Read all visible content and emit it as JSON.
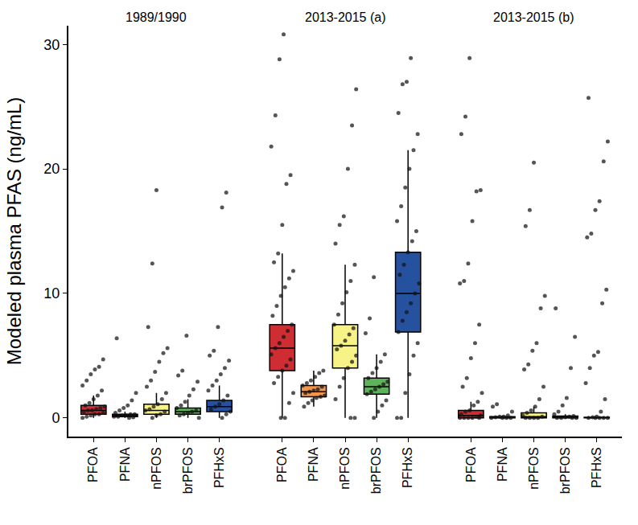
{
  "chart_data": {
    "type": "box",
    "ylabel": "Modeled plasma PFAS (ng/mL)",
    "ylim": [
      -1.5,
      31.5
    ],
    "yticks": [
      0,
      10,
      20,
      30
    ],
    "grid": false,
    "marker": "circle",
    "groups": [
      {
        "name": "1989/1990",
        "boxes": [
          {
            "category": "PFOA",
            "color": "#c8161d",
            "q1": 0.3,
            "median": 0.6,
            "q3": 1.0,
            "lowerfence": 0,
            "upperfence": 1.8,
            "points": [
              0,
              0.1,
              0.2,
              0.3,
              0.3,
              0.4,
              0.5,
              0.6,
              0.6,
              0.7,
              0.8,
              0.9,
              1.0,
              1.2,
              1.5,
              1.8,
              2.2,
              2.6,
              3.0,
              3.5,
              3.9,
              4.1,
              4.7
            ]
          },
          {
            "category": "PFNA",
            "color": "#f08a3c",
            "q1": 0.1,
            "median": 0.2,
            "q3": 0.3,
            "lowerfence": 0,
            "upperfence": 0.5,
            "points": [
              0,
              0.05,
              0.1,
              0.1,
              0.2,
              0.2,
              0.3,
              0.3,
              0.4,
              0.6,
              0.8,
              1.0,
              1.4,
              2.0,
              6.4
            ]
          },
          {
            "category": "nPFOS",
            "color": "#f7f27a",
            "q1": 0.3,
            "median": 0.6,
            "q3": 1.1,
            "lowerfence": 0,
            "upperfence": 2.0,
            "points": [
              0,
              0.2,
              0.3,
              0.5,
              0.6,
              0.7,
              0.9,
              1.1,
              1.5,
              2.0,
              2.5,
              3.0,
              3.7,
              4.5,
              5.2,
              5.6,
              7.3,
              12.4,
              18.3
            ]
          },
          {
            "category": "brPFOS",
            "color": "#4fa84a",
            "q1": 0.3,
            "median": 0.5,
            "q3": 0.8,
            "lowerfence": 0,
            "upperfence": 1.5,
            "points": [
              0,
              0.2,
              0.3,
              0.4,
              0.5,
              0.6,
              0.8,
              1.0,
              1.3,
              1.8,
              2.3,
              2.9,
              3.4,
              3.8,
              6.6
            ]
          },
          {
            "category": "PFHxS",
            "color": "#0d3e94",
            "q1": 0.5,
            "median": 0.9,
            "q3": 1.4,
            "lowerfence": 0,
            "upperfence": 2.6,
            "points": [
              0,
              0.3,
              0.5,
              0.7,
              0.9,
              1.1,
              1.4,
              1.8,
              2.2,
              2.6,
              3.0,
              3.5,
              4.0,
              4.6,
              5.0,
              5.4,
              7.3,
              16.9,
              18.1
            ]
          }
        ]
      },
      {
        "name": "2013-2015 (a)",
        "boxes": [
          {
            "category": "PFOA",
            "color": "#c8161d",
            "q1": 3.8,
            "median": 5.6,
            "q3": 7.5,
            "lowerfence": 0,
            "upperfence": 13.2,
            "points": [
              0,
              0,
              1.2,
              2.0,
              2.8,
              3.3,
              3.8,
              4.2,
              4.7,
              5.1,
              5.6,
              6.0,
              6.5,
              7.0,
              7.5,
              8.2,
              9.0,
              9.8,
              10.5,
              11.2,
              11.8,
              12.5,
              13.2,
              15.5,
              18.8,
              19.5,
              21.8,
              24.3,
              28.8,
              30.8
            ]
          },
          {
            "category": "PFNA",
            "color": "#f08a3c",
            "q1": 1.7,
            "median": 2.1,
            "q3": 2.6,
            "lowerfence": 0.9,
            "upperfence": 3.8,
            "points": [
              0.9,
              1.2,
              1.4,
              1.6,
              1.7,
              1.8,
              2.0,
              2.1,
              2.2,
              2.3,
              2.5,
              2.6,
              2.8,
              3.0,
              3.3,
              3.6,
              3.8
            ]
          },
          {
            "category": "nPFOS",
            "color": "#f7f27a",
            "q1": 4.0,
            "median": 5.8,
            "q3": 7.5,
            "lowerfence": 0,
            "upperfence": 12.3,
            "points": [
              0,
              0,
              1.5,
              2.5,
              3.2,
              4.0,
              4.5,
              5.0,
              5.5,
              5.8,
              6.2,
              6.7,
              7.2,
              7.5,
              8.3,
              9.2,
              10.1,
              11.0,
              12.3,
              14.0,
              15.5,
              16.2,
              20.0,
              23.5,
              26.4
            ]
          },
          {
            "category": "brPFOS",
            "color": "#4fa84a",
            "q1": 1.9,
            "median": 2.5,
            "q3": 3.2,
            "lowerfence": 0,
            "upperfence": 5.1,
            "points": [
              0,
              0.5,
              1.0,
              1.4,
              1.9,
              2.1,
              2.3,
              2.5,
              2.7,
              2.9,
              3.2,
              3.6,
              4.0,
              4.5,
              5.1,
              6.8,
              8.0,
              11.3
            ]
          },
          {
            "category": "PFHxS",
            "color": "#0d3e94",
            "q1": 6.9,
            "median": 10.0,
            "q3": 13.3,
            "lowerfence": 0,
            "upperfence": 21.5,
            "points": [
              0,
              0,
              2.0,
              3.5,
              5.0,
              6.0,
              6.9,
              7.8,
              8.5,
              9.2,
              10.0,
              10.8,
              11.5,
              12.3,
              13.3,
              14.2,
              15.0,
              15.8,
              17.0,
              18.5,
              20.0,
              21.5,
              22.8,
              24.5,
              26.8,
              27.0,
              28.9
            ]
          }
        ]
      },
      {
        "name": "2013-2015 (b)",
        "boxes": [
          {
            "category": "PFOA",
            "color": "#c8161d",
            "q1": 0,
            "median": 0.2,
            "q3": 0.6,
            "lowerfence": 0,
            "upperfence": 1.3,
            "points": [
              0,
              0,
              0,
              0,
              0,
              0.1,
              0.2,
              0.3,
              0.5,
              0.6,
              1.0,
              1.3,
              2.0,
              2.5,
              3.2,
              4.8,
              6.0,
              7.5,
              10.8,
              11.0,
              12.4,
              15.8,
              18.2,
              18.3,
              22.8,
              24.2,
              28.9
            ]
          },
          {
            "category": "PFNA",
            "color": "#f08a3c",
            "q1": 0,
            "median": 0.05,
            "q3": 0.1,
            "lowerfence": 0,
            "upperfence": 0.2,
            "points": [
              0,
              0,
              0,
              0,
              0.05,
              0.1,
              0.1,
              0.2,
              0.5,
              0.9,
              1.1
            ]
          },
          {
            "category": "nPFOS",
            "color": "#f7f27a",
            "q1": 0,
            "median": 0.1,
            "q3": 0.4,
            "lowerfence": 0,
            "upperfence": 0.9,
            "points": [
              0,
              0,
              0,
              0,
              0.1,
              0.2,
              0.4,
              0.6,
              0.9,
              1.5,
              2.5,
              3.9,
              4.3,
              5.4,
              6.0,
              8.8,
              9.8,
              15.4,
              16.7,
              20.5
            ]
          },
          {
            "category": "brPFOS",
            "color": "#4fa84a",
            "q1": 0,
            "median": 0.05,
            "q3": 0.15,
            "lowerfence": 0,
            "upperfence": 0.3,
            "points": [
              0,
              0,
              0,
              0,
              0.05,
              0.1,
              0.15,
              0.3,
              0.5,
              1.0,
              1.6,
              4.0,
              6.5,
              8.8
            ]
          },
          {
            "category": "PFHxS",
            "color": "#0d3e94",
            "q1": 0,
            "median": 0,
            "q3": 0.05,
            "lowerfence": 0,
            "upperfence": 0.1,
            "points": [
              0,
              0,
              0,
              0,
              0,
              0.05,
              0.1,
              0.5,
              1.5,
              2.8,
              4.0,
              5.0,
              5.3,
              9.2,
              10.3,
              14.5,
              14.8,
              16.7,
              17.4,
              20.6,
              22.2,
              25.7
            ]
          }
        ]
      }
    ]
  }
}
